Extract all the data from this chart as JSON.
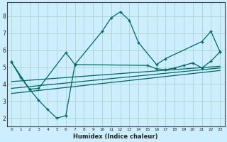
{
  "xlabel": "Humidex (Indice chaleur)",
  "bg_color": "#cceeff",
  "grid_color": "#b0d8cc",
  "line_color": "#006666",
  "xlim": [
    -0.5,
    23.5
  ],
  "ylim": [
    1.5,
    8.8
  ],
  "xticks": [
    0,
    1,
    2,
    3,
    4,
    5,
    6,
    7,
    8,
    9,
    10,
    11,
    12,
    13,
    14,
    15,
    16,
    17,
    18,
    19,
    20,
    21,
    22,
    23
  ],
  "yticks": [
    2,
    3,
    4,
    5,
    6,
    7,
    8
  ],
  "line1_x": [
    0,
    1,
    2,
    3,
    4,
    5,
    6,
    7,
    10,
    11,
    12,
    13,
    14,
    16,
    17,
    21,
    22,
    23
  ],
  "line1_y": [
    5.3,
    4.4,
    3.7,
    3.05,
    2.5,
    2.0,
    2.15,
    5.15,
    7.1,
    7.9,
    8.25,
    7.75,
    6.45,
    5.15,
    5.5,
    6.5,
    7.1,
    5.9
  ],
  "line2_x": [
    0,
    23
  ],
  "line2_y": [
    4.15,
    5.05
  ],
  "line3_x": [
    0,
    23
  ],
  "line3_y": [
    3.75,
    4.95
  ],
  "line4_x": [
    0,
    23
  ],
  "line4_y": [
    3.45,
    4.8
  ],
  "line5_x": [
    0,
    2,
    3,
    6,
    7,
    15,
    16,
    17,
    18,
    19,
    20,
    21,
    22,
    23
  ],
  "line5_y": [
    5.3,
    3.7,
    3.75,
    5.85,
    5.15,
    5.1,
    4.9,
    4.85,
    4.95,
    5.1,
    5.25,
    4.95,
    5.35,
    5.9
  ]
}
